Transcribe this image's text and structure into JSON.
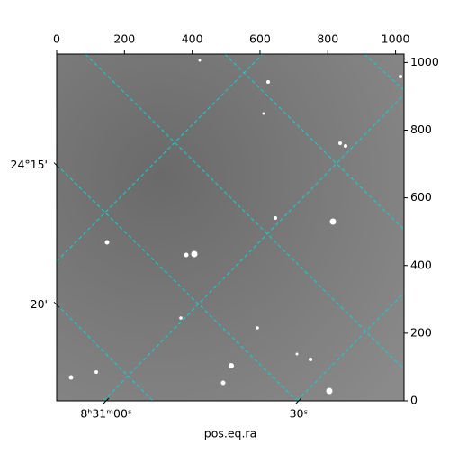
{
  "chart_data": {
    "type": "image",
    "xlabel": "pos.eq.ra",
    "xlim": [
      0,
      1025
    ],
    "ylim": [
      0,
      1025
    ],
    "xticks": [
      0,
      200,
      400,
      600,
      800,
      1000
    ],
    "yticks": [
      0,
      200,
      400,
      600,
      800,
      1000
    ],
    "world_yticks": [
      {
        "value": 696,
        "label": "24°15'"
      },
      {
        "value": 284,
        "label": "20'"
      }
    ],
    "world_xticks": [
      {
        "value": 146,
        "label": "8ʰ31ᵐ00ˢ"
      },
      {
        "value": 714,
        "label": "30ˢ"
      }
    ],
    "grid": true,
    "grid_color": "#00d8d8"
  }
}
